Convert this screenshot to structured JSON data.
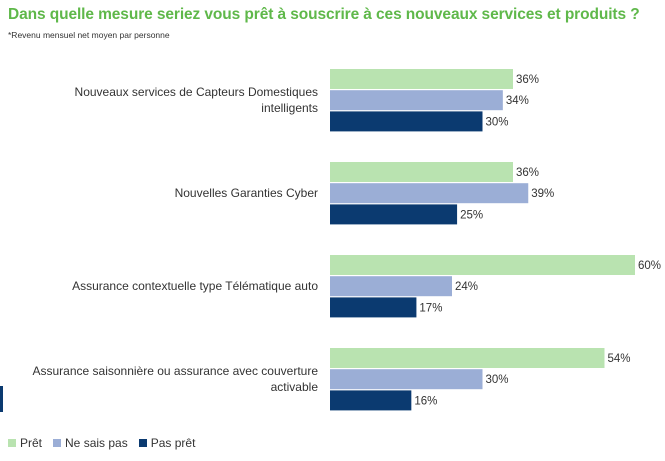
{
  "title": "Dans quelle mesure seriez vous prêt à souscrire à ces nouveaux services et produits ?",
  "subtitle": "*Revenu mensuel net moyen par personne",
  "legend": [
    {
      "label": "Prêt",
      "color": "#b9e3b0"
    },
    {
      "label": "Ne sais pas",
      "color": "#9baed6"
    },
    {
      "label": "Pas prêt",
      "color": "#0b3a70"
    }
  ],
  "chart_data": {
    "type": "bar",
    "orientation": "horizontal",
    "categories": [
      "Nouveaux services de Capteurs Domestiques intelligents",
      "Nouvelles Garanties Cyber",
      "Assurance contextuelle type Télématique auto",
      "Assurance saisonnière ou assurance avec couverture activable"
    ],
    "series": [
      {
        "name": "Prêt",
        "color": "#b9e3b0",
        "values": [
          36,
          36,
          60,
          54
        ]
      },
      {
        "name": "Ne sais pas",
        "color": "#9baed6",
        "values": [
          34,
          39,
          24,
          30
        ]
      },
      {
        "name": "Pas prêt",
        "color": "#0b3a70",
        "values": [
          30,
          25,
          17,
          16
        ]
      }
    ],
    "value_suffix": "%",
    "xlim": [
      0,
      60
    ],
    "grid": false,
    "legend_position": "bottom-left"
  }
}
